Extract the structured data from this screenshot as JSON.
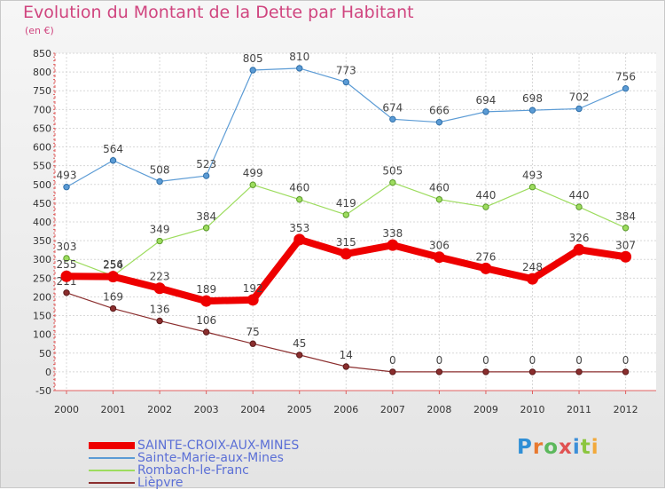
{
  "title": "Evolution du Montant de la Dette par Habitant",
  "subtitle": "(en €)",
  "logo": "Proxiti",
  "chart_data": {
    "type": "line",
    "title": "Evolution du Montant de la Dette par Habitant",
    "ylabel": "(en €)",
    "ylim": [
      -50,
      850
    ],
    "y_ticks": [
      -50,
      0,
      50,
      100,
      150,
      200,
      250,
      300,
      350,
      400,
      450,
      500,
      550,
      600,
      650,
      700,
      750,
      800,
      850
    ],
    "categories": [
      "2000",
      "2001",
      "2002",
      "2003",
      "2004",
      "2005",
      "2006",
      "2007",
      "2008",
      "2009",
      "2010",
      "2011",
      "2012"
    ],
    "grid": true,
    "legend_position": "bottom-left",
    "series": [
      {
        "name": "SAINTE-CROIX-AUX-MINES",
        "color": "#ee0000",
        "values": [
          255,
          254,
          223,
          189,
          192,
          353,
          315,
          338,
          306,
          276,
          248,
          326,
          307
        ]
      },
      {
        "name": "Sainte-Marie-aux-Mines",
        "color": "#5b9bd5",
        "values": [
          493,
          564,
          508,
          523,
          805,
          810,
          773,
          674,
          666,
          694,
          698,
          702,
          756
        ]
      },
      {
        "name": "Rombach-le-Franc",
        "color": "#9ddc5e",
        "values": [
          303,
          256,
          349,
          384,
          499,
          460,
          419,
          505,
          460,
          440,
          493,
          440,
          384
        ]
      },
      {
        "name": "Lièpvre",
        "color": "#8b2e2e",
        "values": [
          211,
          169,
          136,
          106,
          75,
          45,
          14,
          0,
          0,
          0,
          0,
          0,
          0
        ]
      }
    ]
  }
}
